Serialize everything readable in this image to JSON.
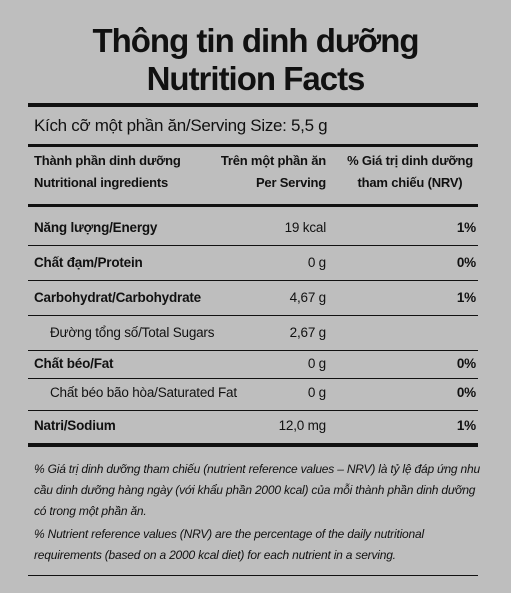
{
  "title_vi": "Thông tin dinh dưỡng",
  "title_en": "Nutrition Facts",
  "serving": "Kích cỡ một phần ăn/Serving Size: 5,5 g",
  "table": {
    "header": [
      [
        "Thành phần dinh dưỡng",
        "Nutritional ingredients"
      ],
      [
        "Trên một phần ăn",
        "Per Serving"
      ],
      [
        "% Giá trị dinh dưỡng",
        "tham chiếu (NRV)"
      ]
    ],
    "rows": [
      [
        "Năng lượng/Energy",
        "19 kcal",
        "1%"
      ],
      [
        "Chất đạm/Protein",
        "0 g",
        "0%"
      ],
      [
        "Carbohydrat/Carbohydrate",
        "4,67 g",
        "1%"
      ],
      [
        "Đường tổng số/Total Sugars",
        "2,67 g"
      ],
      [
        "Chất béo/Fat",
        "0 g",
        "0%"
      ],
      [
        "Chất béo bão hòa/Saturated Fat",
        "0 g",
        "0%"
      ],
      [
        "Natri/Sodium",
        "12,0 mg",
        "1%"
      ]
    ]
  },
  "footnotes": [
    "% Giá trị dinh dưỡng tham chiếu (nutrient reference values – NRV) là tỷ lệ đáp ứng nhu cầu dinh dưỡng hàng ngày (với khẩu phần 2000 kcal) của mỗi thành phần dinh dưỡng có trong một phần ăn.",
    "% Nutrient reference values (NRV) are the percentage of the daily nutritional requirements (based on a 2000 kcal diet) for each nutrient in a serving."
  ]
}
